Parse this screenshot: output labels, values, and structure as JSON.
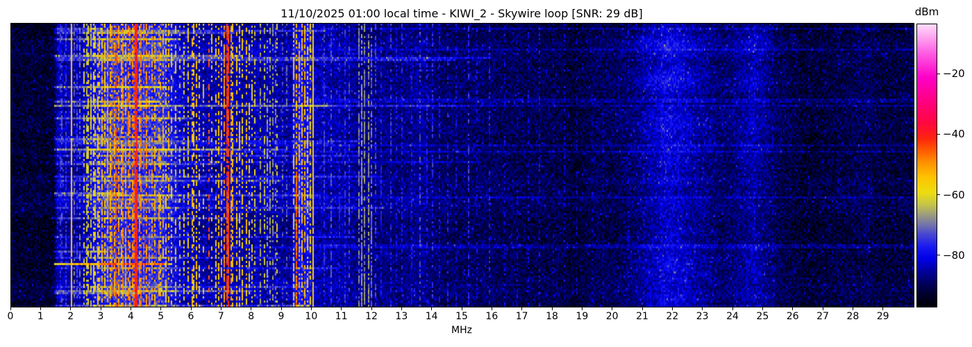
{
  "figure": {
    "title": "11/10/2025 01:00 local time - KIWI_2 - Skywire loop [SNR: 29 dB]"
  },
  "chart_data": {
    "type": "heatmap",
    "title": "11/10/2025 01:00 local time - KIWI_2 - Skywire loop [SNR: 29 dB]",
    "timestamp_local": "11/10/2025 01:00",
    "station": "KIWI_2",
    "antenna": "Skywire loop",
    "snr_db": 29,
    "xlabel": "MHz",
    "x_range_mhz": [
      0,
      30
    ],
    "x_ticks": [
      0,
      1,
      2,
      3,
      4,
      5,
      6,
      7,
      8,
      9,
      10,
      11,
      12,
      13,
      14,
      15,
      16,
      17,
      18,
      19,
      20,
      21,
      22,
      23,
      24,
      25,
      26,
      27,
      28,
      29
    ],
    "y_axis": {
      "meaning": "time (waterfall rows, no tick labels)",
      "ticks": []
    },
    "colorbar": {
      "label": "dBm",
      "ticks": [
        -20,
        -40,
        -60,
        -80
      ],
      "vmax": -3.4,
      "vmin": -96.8,
      "colormap_stops": [
        [
          -96.8,
          "#000006"
        ],
        [
          -93,
          "#00002a"
        ],
        [
          -89,
          "#000060"
        ],
        [
          -85,
          "#0000a0"
        ],
        [
          -81,
          "#0000e8"
        ],
        [
          -77,
          "#1a1af2"
        ],
        [
          -73,
          "#4747d2"
        ],
        [
          -70,
          "#7070b0"
        ],
        [
          -67,
          "#969688"
        ],
        [
          -63,
          "#c6c648"
        ],
        [
          -59,
          "#eede10"
        ],
        [
          -54,
          "#ffc400"
        ],
        [
          -49,
          "#ff9000"
        ],
        [
          -45,
          "#ff5a00"
        ],
        [
          -41,
          "#ff2410"
        ],
        [
          -36,
          "#ff0840"
        ],
        [
          -29,
          "#ff0080"
        ],
        [
          -21,
          "#ff00c8"
        ],
        [
          -13,
          "#ff5ce4"
        ],
        [
          -3.4,
          "#ffdcfa"
        ]
      ]
    },
    "noise_floor_profile_dbm": [
      [
        0,
        -93.5
      ],
      [
        1.43,
        -93.5
      ],
      [
        1.55,
        -83.5
      ],
      [
        2.4,
        -83.5
      ],
      [
        2.9,
        -77
      ],
      [
        3.2,
        -74.5
      ],
      [
        5.0,
        -74.5
      ],
      [
        5.5,
        -80
      ],
      [
        5.8,
        -83.5
      ],
      [
        8.2,
        -84
      ],
      [
        8.3,
        -85.5
      ],
      [
        9.3,
        -85.5
      ],
      [
        9.45,
        -79
      ],
      [
        9.95,
        -79
      ],
      [
        10.05,
        -84.5
      ],
      [
        11.0,
        -85
      ],
      [
        13.0,
        -86.5
      ],
      [
        16.0,
        -89.5
      ],
      [
        18.0,
        -91.5
      ],
      [
        20.0,
        -90.5
      ],
      [
        20.8,
        -88
      ],
      [
        21.8,
        -84.5
      ],
      [
        22.8,
        -87.5
      ],
      [
        23.6,
        -89.5
      ],
      [
        24.7,
        -86.5
      ],
      [
        25.5,
        -89.5
      ],
      [
        26.5,
        -91
      ],
      [
        30,
        -91.5
      ]
    ],
    "ionospheric_blobs": [
      {
        "center_mhz": 21.8,
        "sigma_mhz": 1.2,
        "peak_boost_db": 4
      },
      {
        "center_mhz": 24.7,
        "sigma_mhz": 0.6,
        "peak_boost_db": 3
      }
    ],
    "horizontal_bursts": {
      "count": 40,
      "mhz_span": [
        1.45,
        9.9
      ],
      "boost_db": [
        7,
        19
      ],
      "faint_high_band_rows": 7
    },
    "signals": [
      {
        "f": 1.62,
        "db": -74,
        "duty": 0.5
      },
      {
        "f": 1.7,
        "db": -72,
        "duty": 0.45
      },
      {
        "f": 1.8,
        "db": -74,
        "duty": 0.4
      },
      {
        "f": 2.0,
        "db": -56,
        "duty": 0.97
      },
      {
        "f": 2.1,
        "db": -70,
        "duty": 0.35
      },
      {
        "f": 2.2,
        "db": -72,
        "duty": 0.4
      },
      {
        "f": 2.3,
        "db": -68,
        "duty": 0.45
      },
      {
        "f": 2.42,
        "db": -60,
        "duty": 0.5
      },
      {
        "f": 2.5,
        "db": -62,
        "duty": 0.5
      },
      {
        "f": 2.57,
        "db": -58,
        "duty": 0.55
      },
      {
        "f": 2.65,
        "db": -60,
        "duty": 0.5
      },
      {
        "f": 2.73,
        "db": -57,
        "duty": 0.55
      },
      {
        "f": 2.8,
        "db": -59,
        "duty": 0.5
      },
      {
        "f": 2.88,
        "db": -55,
        "duty": 0.55
      },
      {
        "f": 2.95,
        "db": -53,
        "duty": 0.6
      },
      {
        "f": 3.02,
        "db": -52,
        "duty": 0.6
      },
      {
        "f": 3.1,
        "db": -55,
        "duty": 0.55
      },
      {
        "f": 3.2,
        "db": -50,
        "duty": 0.65
      },
      {
        "f": 3.28,
        "db": -52,
        "duty": 0.6
      },
      {
        "f": 3.35,
        "db": -47,
        "duty": 0.6
      },
      {
        "f": 3.45,
        "db": -50,
        "duty": 0.6
      },
      {
        "f": 3.5,
        "db": -43,
        "duty": 0.6
      },
      {
        "f": 3.58,
        "db": -49,
        "duty": 0.6
      },
      {
        "f": 3.65,
        "db": -51,
        "duty": 0.6
      },
      {
        "f": 3.73,
        "db": -48,
        "duty": 0.6
      },
      {
        "f": 3.8,
        "db": -50,
        "duty": 0.6
      },
      {
        "f": 3.88,
        "db": -47,
        "duty": 0.6
      },
      {
        "f": 3.95,
        "db": -50,
        "duty": 0.55
      },
      {
        "f": 4.03,
        "db": -48,
        "duty": 0.6
      },
      {
        "f": 4.1,
        "db": -46,
        "duty": 0.6
      },
      {
        "f": 4.16,
        "db": -40,
        "duty": 0.97,
        "w": 0.08
      },
      {
        "f": 4.25,
        "db": -49,
        "duty": 0.6
      },
      {
        "f": 4.33,
        "db": -47,
        "duty": 0.55
      },
      {
        "f": 4.42,
        "db": -45,
        "duty": 0.55
      },
      {
        "f": 4.5,
        "db": -49,
        "duty": 0.55
      },
      {
        "f": 4.6,
        "db": -47,
        "duty": 0.5
      },
      {
        "f": 4.7,
        "db": -50,
        "duty": 0.5
      },
      {
        "f": 4.8,
        "db": -52,
        "duty": 0.5
      },
      {
        "f": 4.9,
        "db": -50,
        "duty": 0.5
      },
      {
        "f": 4.97,
        "db": -53,
        "duty": 0.5
      },
      {
        "f": 5.05,
        "db": -52,
        "duty": 0.5
      },
      {
        "f": 5.15,
        "db": -55,
        "duty": 0.45
      },
      {
        "f": 5.25,
        "db": -53,
        "duty": 0.45
      },
      {
        "f": 5.35,
        "db": -56,
        "duty": 0.4
      },
      {
        "f": 5.45,
        "db": -58,
        "duty": 0.4
      },
      {
        "f": 5.6,
        "db": -60,
        "duty": 0.4
      },
      {
        "f": 5.75,
        "db": -58,
        "duty": 0.4
      },
      {
        "f": 5.88,
        "db": -56,
        "duty": 0.45
      },
      {
        "f": 6.0,
        "db": -53,
        "duty": 0.5
      },
      {
        "f": 6.07,
        "db": -55,
        "duty": 0.5
      },
      {
        "f": 6.15,
        "db": -54,
        "duty": 0.5
      },
      {
        "f": 6.25,
        "db": -57,
        "duty": 0.45
      },
      {
        "f": 6.4,
        "db": -60,
        "duty": 0.35
      },
      {
        "f": 6.6,
        "db": -44,
        "duty": 0.3
      },
      {
        "f": 6.65,
        "db": -58,
        "duty": 0.4
      },
      {
        "f": 6.8,
        "db": -56,
        "duty": 0.4
      },
      {
        "f": 6.9,
        "db": -54,
        "duty": 0.45
      },
      {
        "f": 7.0,
        "db": -52,
        "duty": 0.5
      },
      {
        "f": 7.1,
        "db": -49,
        "duty": 0.55
      },
      {
        "f": 7.2,
        "db": -42,
        "duty": 0.85,
        "w": 0.07
      },
      {
        "f": 7.3,
        "db": -50,
        "duty": 0.6
      },
      {
        "f": 7.38,
        "db": -53,
        "duty": 0.55
      },
      {
        "f": 7.5,
        "db": -55,
        "duty": 0.5
      },
      {
        "f": 7.6,
        "db": -54,
        "duty": 0.5
      },
      {
        "f": 7.7,
        "db": -56,
        "duty": 0.45
      },
      {
        "f": 7.8,
        "db": -54,
        "duty": 0.45
      },
      {
        "f": 7.9,
        "db": -57,
        "duty": 0.4
      },
      {
        "f": 8.0,
        "db": -58,
        "duty": 0.4
      },
      {
        "f": 8.1,
        "db": -61,
        "duty": 0.35
      },
      {
        "f": 8.3,
        "db": -64,
        "duty": 0.45
      },
      {
        "f": 8.4,
        "db": -62,
        "duty": 0.5
      },
      {
        "f": 8.5,
        "db": -65,
        "duty": 0.5
      },
      {
        "f": 8.6,
        "db": -64,
        "duty": 0.5
      },
      {
        "f": 8.68,
        "db": -66,
        "duty": 0.45
      },
      {
        "f": 8.8,
        "db": -68,
        "duty": 0.4
      },
      {
        "f": 8.85,
        "db": -58,
        "duty": 0.25
      },
      {
        "f": 9.0,
        "db": -72,
        "duty": 0.3
      },
      {
        "f": 9.15,
        "db": -70,
        "duty": 0.3
      },
      {
        "f": 9.4,
        "db": -55,
        "duty": 0.6
      },
      {
        "f": 9.5,
        "db": -45,
        "duty": 0.85,
        "from": 0.52
      },
      {
        "f": 9.5,
        "db": -54,
        "duty": 0.5
      },
      {
        "f": 9.58,
        "db": -51,
        "duty": 0.6
      },
      {
        "f": 9.65,
        "db": -53,
        "duty": 0.6
      },
      {
        "f": 9.75,
        "db": -52,
        "duty": 0.6
      },
      {
        "f": 9.85,
        "db": -55,
        "duty": 0.55
      },
      {
        "f": 9.93,
        "db": -57,
        "duty": 0.5
      },
      {
        "f": 10.02,
        "db": -56,
        "duty": 0.97
      },
      {
        "f": 10.4,
        "db": -74,
        "duty": 0.5
      },
      {
        "f": 10.65,
        "db": -72,
        "duty": 0.5
      },
      {
        "f": 10.9,
        "db": -76,
        "duty": 0.4
      },
      {
        "f": 11.1,
        "db": -74,
        "duty": 0.45
      },
      {
        "f": 11.25,
        "db": -73,
        "duty": 0.45
      },
      {
        "f": 11.55,
        "db": -68,
        "duty": 0.7
      },
      {
        "f": 11.65,
        "db": -66,
        "duty": 0.75
      },
      {
        "f": 11.75,
        "db": -67,
        "duty": 0.7
      },
      {
        "f": 11.87,
        "db": -66,
        "duty": 0.7
      },
      {
        "f": 11.97,
        "db": -69,
        "duty": 0.6
      },
      {
        "f": 12.1,
        "db": -72,
        "duty": 0.5
      },
      {
        "f": 12.3,
        "db": -76,
        "duty": 0.4
      },
      {
        "f": 12.6,
        "db": -74,
        "duty": 0.45
      },
      {
        "f": 12.8,
        "db": -77,
        "duty": 0.35
      },
      {
        "f": 13.0,
        "db": -76,
        "duty": 0.4
      },
      {
        "f": 13.3,
        "db": -77,
        "duty": 0.35
      },
      {
        "f": 13.57,
        "db": -72,
        "duty": 0.5
      },
      {
        "f": 13.8,
        "db": -76,
        "duty": 0.35
      },
      {
        "f": 14.0,
        "db": -75,
        "duty": 0.4
      },
      {
        "f": 14.25,
        "db": -77,
        "duty": 0.35
      },
      {
        "f": 14.5,
        "db": -76,
        "duty": 0.35
      },
      {
        "f": 14.8,
        "db": -78,
        "duty": 0.3
      },
      {
        "f": 15.2,
        "db": -74,
        "duty": 0.45
      },
      {
        "f": 15.5,
        "db": -78,
        "duty": 0.3
      },
      {
        "f": 15.9,
        "db": -76,
        "duty": 0.35
      },
      {
        "f": 16.4,
        "db": -79,
        "duty": 0.3
      },
      {
        "f": 16.8,
        "db": -80,
        "duty": 0.28
      },
      {
        "f": 17.2,
        "db": -79,
        "duty": 0.3
      },
      {
        "f": 17.55,
        "db": -78,
        "duty": 0.3
      },
      {
        "f": 18.0,
        "db": -80,
        "duty": 0.25
      },
      {
        "f": 18.4,
        "db": -79,
        "duty": 0.28
      },
      {
        "f": 18.8,
        "db": -81,
        "duty": 0.25
      },
      {
        "f": 19.3,
        "db": -80,
        "duty": 0.25
      },
      {
        "f": 19.7,
        "db": -81,
        "duty": 0.22
      },
      {
        "f": 20.5,
        "db": -80,
        "duty": 0.3
      },
      {
        "f": 21.0,
        "db": -79,
        "duty": 0.3
      },
      {
        "f": 21.6,
        "db": -78,
        "duty": 0.35
      },
      {
        "f": 22.2,
        "db": -79,
        "duty": 0.3
      },
      {
        "f": 23.0,
        "db": -81,
        "duty": 0.25
      },
      {
        "f": 24.0,
        "db": -81,
        "duty": 0.25
      },
      {
        "f": 24.7,
        "db": -79,
        "duty": 0.3
      },
      {
        "f": 25.3,
        "db": -80,
        "duty": 0.25
      },
      {
        "f": 26.5,
        "db": -83,
        "duty": 0.2
      },
      {
        "f": 27.5,
        "db": -83,
        "duty": 0.2
      },
      {
        "f": 28.5,
        "db": -83,
        "duty": 0.2
      }
    ]
  }
}
